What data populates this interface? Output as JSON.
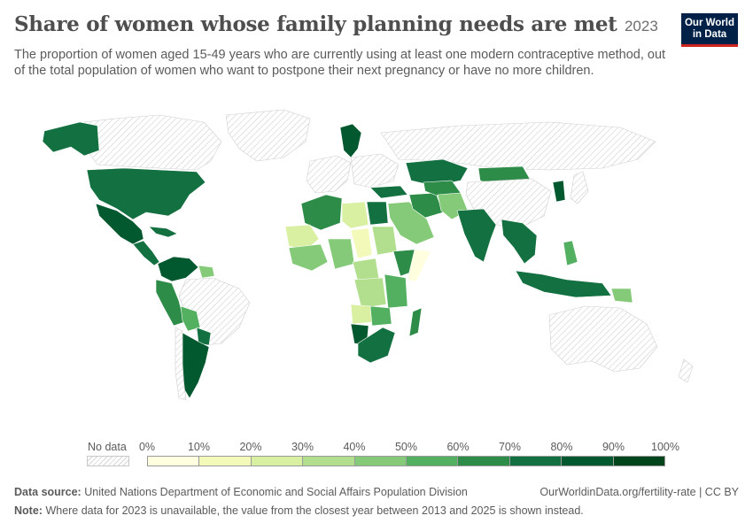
{
  "header": {
    "title": "Share of women whose family planning needs are met",
    "year": "2023",
    "subtitle": "The proportion of women aged 15-49 years who are currently using at least one modern contraceptive method, out of the total population of women who want to postpone their next pregnancy or have no more children."
  },
  "logo": {
    "line1": "Our World",
    "line2": "in Data",
    "color": "#002147",
    "accent": "#ce261e"
  },
  "legend": {
    "no_data_label": "No data",
    "ticks": [
      "0%",
      "10%",
      "20%",
      "30%",
      "40%",
      "50%",
      "60%",
      "70%",
      "80%",
      "90%",
      "100%"
    ],
    "bin_colors": [
      "#ffffe0",
      "#f3f9b8",
      "#d9efa2",
      "#b2df8e",
      "#84ca78",
      "#52b060",
      "#2d8c48",
      "#137040",
      "#03592f",
      "#00441b"
    ]
  },
  "map": {
    "no_data_color": "#e8e8e8",
    "region_colors": {
      "north_america": "#137040",
      "alaska": "#137040",
      "greenland": "no-data",
      "canada": "no-data",
      "mexico": "#03592f",
      "central_america": "#137040",
      "caribbean": "#137040",
      "colombia_venezuela": "#03592f",
      "peru_ecuador": "#2d8c48",
      "bolivia": "#52b060",
      "brazil": "no-data",
      "paraguay": "#137040",
      "argentina": "#03592f",
      "chile": "no-data",
      "guyana": "#84ca78",
      "western_europe": "no-data",
      "scandinavia": "#03592f",
      "eastern_europe": "no-data",
      "russia": "no-data",
      "north_africa_west": "#2d8c48",
      "libya": "#d9efa2",
      "egypt": "#137040",
      "sahel_west": "#d9efa2",
      "chad": "#f3f9b8",
      "sudan": "#b2df8e",
      "west_africa": "#84ca78",
      "nigeria": "#84ca78",
      "ethiopia": "#2d8c48",
      "somalia": "#ffffe0",
      "central_africa": "#b2df8e",
      "drc": "#b2df8e",
      "east_africa": "#52b060",
      "angola": "#d9efa2",
      "zambia": "#52b060",
      "namibia": "#03592f",
      "south_africa": "#137040",
      "madagascar": "#2d8c48",
      "arabian_peninsula": "#84ca78",
      "iran": "#2d8c48",
      "turkey": "#137040",
      "kazakhstan": "#137040",
      "central_asia": "#2d8c48",
      "mongolia": "#2d8c48",
      "afghanistan_pakistan": "#84ca78",
      "india": "#137040",
      "china": "no-data",
      "southeast_asia": "#137040",
      "korea": "#03592f",
      "japan": "no-data",
      "indonesia": "#137040",
      "philippines": "#52b060",
      "papua_new_guinea": "#84ca78",
      "australia": "no-data",
      "new_zealand": "no-data"
    }
  },
  "footer": {
    "source_label": "Data source:",
    "source_text": "United Nations Department of Economic and Social Affairs Population Division",
    "url": "OurWorldinData.org/fertility-rate | CC BY",
    "note_label": "Note:",
    "note_text": "Where data for 2023 is unavailable, the value from the closest year between 2013 and 2025 is shown instead."
  }
}
